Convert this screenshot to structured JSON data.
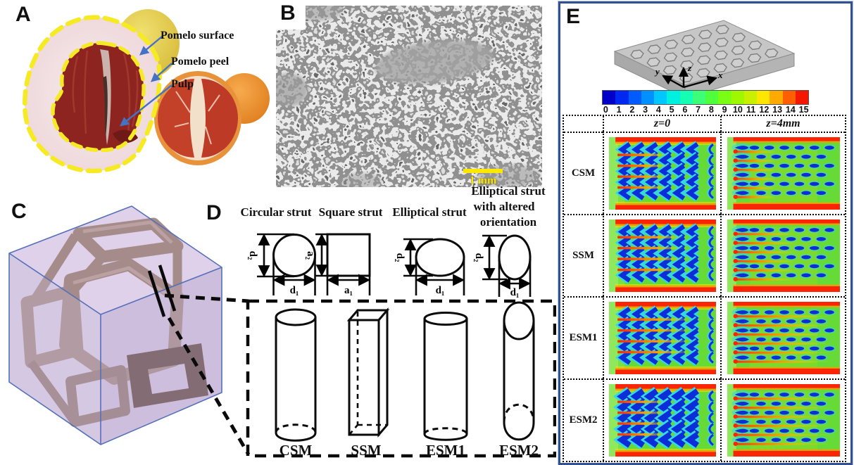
{
  "figure": {
    "panel_labels": {
      "a": "A",
      "b": "B",
      "c": "C",
      "d": "D",
      "e": "E"
    }
  },
  "panel_a": {
    "annotations": [
      "Pomelo surface",
      "Pomelo peel",
      "Pulp"
    ]
  },
  "panel_b": {
    "scale_bar_label": "1 mm"
  },
  "panel_d": {
    "column_headers": [
      "Circular strut",
      "Square strut",
      "Elliptical strut"
    ],
    "column_header_4_lines": [
      "Elliptical strut",
      "with altered",
      "orientation"
    ],
    "cross_sections": [
      {
        "vertical_dim": "d₂",
        "horizontal_dim": "d₁"
      },
      {
        "vertical_dim": "a₂",
        "horizontal_dim": "a₁"
      },
      {
        "vertical_dim": "d₂",
        "horizontal_dim": "d₁"
      },
      {
        "vertical_dim": "d₂",
        "horizontal_dim": "d₁"
      }
    ],
    "strut_models": [
      "CSM",
      "SSM",
      "ESM1",
      "ESM2"
    ]
  },
  "panel_e": {
    "axes": {
      "x": "x",
      "y": "y",
      "z": "z"
    },
    "colorbar": {
      "tick_labels": [
        "0",
        "1",
        "2",
        "3",
        "4",
        "5",
        "6",
        "7",
        "8",
        "9",
        "10",
        "11",
        "12",
        "13",
        "14",
        "15"
      ],
      "segment_colors": [
        "#0000c8",
        "#0028f0",
        "#005cff",
        "#0090ff",
        "#00c8ff",
        "#00f0e0",
        "#14ffb4",
        "#3cff78",
        "#50ff3c",
        "#78ff14",
        "#a0f800",
        "#c8f000",
        "#ffe600",
        "#ffaa00",
        "#ff5f00",
        "#f51800"
      ]
    },
    "column_headers": [
      "z=0",
      "z=4mm"
    ],
    "row_labels": [
      "CSM",
      "SSM",
      "ESM1",
      "ESM2"
    ]
  }
}
